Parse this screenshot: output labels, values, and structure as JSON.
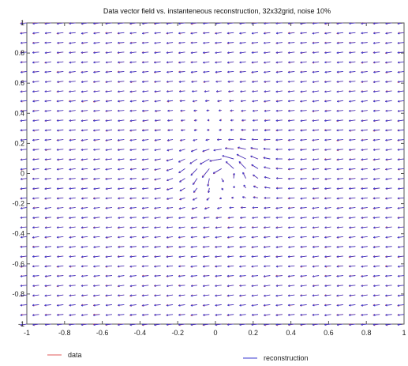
{
  "chart_data": {
    "type": "quiver",
    "title": "Data vector field vs. instanteneous reconstruction, 32x32grid, noise 10%",
    "xlim": [
      -1,
      1
    ],
    "ylim": [
      -1,
      1
    ],
    "grid": false,
    "grid_size": 32,
    "noise_level": "10%",
    "x_ticks": [
      -1,
      -0.8,
      -0.6,
      -0.4,
      -0.2,
      0,
      0.2,
      0.4,
      0.6,
      0.8,
      1
    ],
    "x_tick_labels": [
      "-1",
      "-0.8",
      "-0.6",
      "-0.4",
      "-0.2",
      "0",
      "0.2",
      "0.4",
      "0.6",
      "0.8",
      "1"
    ],
    "y_ticks": [
      1,
      0.8,
      0.6,
      0.4,
      0.2,
      0,
      -0.2,
      -0.4,
      -0.6,
      -0.8,
      -1
    ],
    "y_tick_labels": [
      "1",
      "0.8",
      "0.6",
      "0.4",
      "0.2",
      "0",
      "-0.2",
      "-0.4",
      "-0.6",
      "-0.8",
      "-1"
    ],
    "field": {
      "background_flow": [
        -1,
        -0.12
      ],
      "vortex_center": [
        0.05,
        0.02
      ],
      "vortex_strength": "counter-clockwise rotation"
    },
    "series": [
      {
        "name": "data",
        "color": "#e05a5a"
      },
      {
        "name": "reconstruction",
        "color": "#3a3ad0"
      }
    ],
    "legend_placement": "bottom"
  }
}
